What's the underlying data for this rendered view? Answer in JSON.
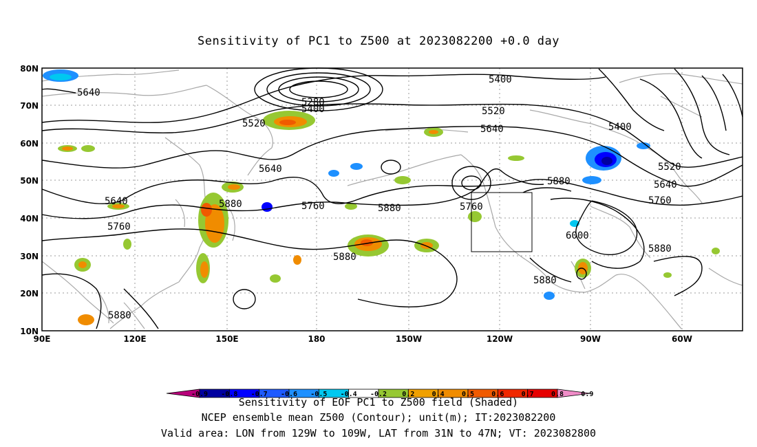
{
  "title": "Sensitivity of PC1 to Z500 at 2023082200 +0.0 day",
  "captions": {
    "line1": "Sensitivity of EOF PC1 to Z500 field (Shaded)",
    "line2": "NCEP ensemble mean Z500 (Contour); unit(m); IT:2023082200",
    "line3": "Valid area: LON from 129W to 109W, LAT from 31N to 47N; VT: 2023082800"
  },
  "axes": {
    "lon_ticks": [
      "90E",
      "120E",
      "150E",
      "180",
      "150W",
      "120W",
      "90W",
      "60W"
    ],
    "lat_ticks": [
      "80N",
      "70N",
      "60N",
      "50N",
      "40N",
      "30N",
      "20N",
      "10N"
    ]
  },
  "valid_area": {
    "lon_range": [
      "129W",
      "109W"
    ],
    "lat_range": [
      "31N",
      "47N"
    ]
  },
  "contour_labels": [
    {
      "text": "5640"
    },
    {
      "text": "5280"
    },
    {
      "text": "5400"
    },
    {
      "text": "5520"
    },
    {
      "text": "5400"
    },
    {
      "text": "5520"
    },
    {
      "text": "5640"
    },
    {
      "text": "5400"
    },
    {
      "text": "5640"
    },
    {
      "text": "5520"
    },
    {
      "text": "5640"
    },
    {
      "text": "5880"
    },
    {
      "text": "5760"
    },
    {
      "text": "5880"
    },
    {
      "text": "5640"
    },
    {
      "text": "5760"
    },
    {
      "text": "5880"
    },
    {
      "text": "5760"
    },
    {
      "text": "6000"
    },
    {
      "text": "5880"
    },
    {
      "text": "5880"
    },
    {
      "text": "5880"
    },
    {
      "text": "5760"
    },
    {
      "text": "5880"
    }
  ],
  "colorbar": {
    "labels": [
      "-0.9",
      "-0.8",
      "-0.7",
      "-0.6",
      "-0.5",
      "-0.4",
      "-0.2",
      "0.2",
      "0.4",
      "0.5",
      "0.6",
      "0.7",
      "0.8",
      "0.9"
    ],
    "colors": [
      "#b8007a",
      "#0000a0",
      "#0000ff",
      "#1e5aff",
      "#1e90ff",
      "#00c8f0",
      "#ffffff",
      "#96c832",
      "#f0a000",
      "#f08c00",
      "#f05a00",
      "#f02800",
      "#e60000",
      "#f08cc8"
    ]
  }
}
